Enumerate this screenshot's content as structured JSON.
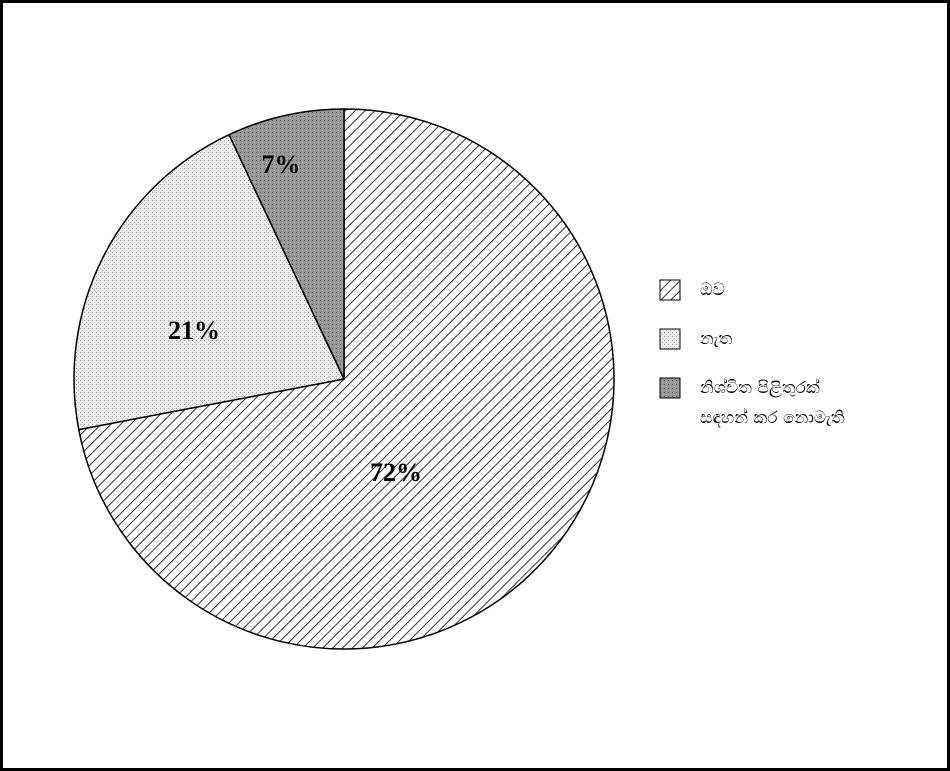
{
  "chart_data": {
    "type": "pie",
    "title": "",
    "slices": [
      {
        "label": "ඔව",
        "value": 72,
        "display": "72%",
        "pattern": "hatch",
        "color": "#ffffff"
      },
      {
        "label": "නැත",
        "value": 21,
        "display": "21%",
        "pattern": "dots-light",
        "color": "#e8e8e8"
      },
      {
        "label": "නිශ්චිත පිළිතුරක් සඳහන් කර නොමැති",
        "value": 7,
        "display": "7%",
        "pattern": "dots-dark",
        "color": "#9a9a9a"
      }
    ],
    "legend": {
      "position": "right",
      "items": [
        {
          "lines": [
            "ඔව"
          ],
          "pattern": "hatch"
        },
        {
          "lines": [
            "නැත"
          ],
          "pattern": "dots-light"
        },
        {
          "lines": [
            "නිශ්චිත පිළිතුරක්",
            "සඳහන් කර නොමැති"
          ],
          "pattern": "dots-dark"
        }
      ]
    },
    "start_angle": "12 o'clock",
    "direction": "clockwise",
    "grid": false
  }
}
